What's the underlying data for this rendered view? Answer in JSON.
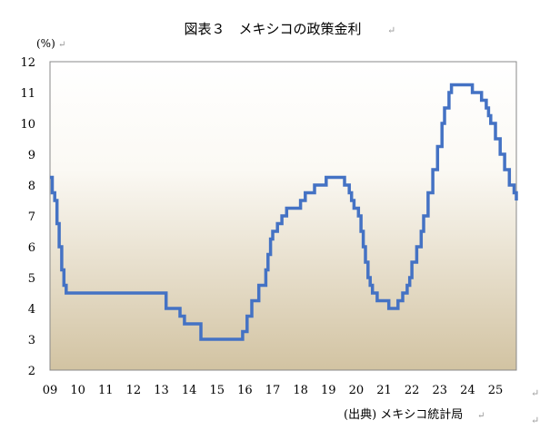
{
  "chart_data": {
    "type": "line",
    "title": "図表３　メキシコの政策金利",
    "ylabel": "(%)",
    "source": "(出典) メキシコ統計局",
    "ylim": [
      2,
      12
    ],
    "yticks": [
      "2",
      "3",
      "4",
      "5",
      "6",
      "7",
      "8",
      "9",
      "10",
      "11",
      "12"
    ],
    "xlim": [
      2009,
      2025.75
    ],
    "xticks": [
      "09",
      "10",
      "11",
      "12",
      "13",
      "14",
      "15",
      "16",
      "17",
      "18",
      "19",
      "20",
      "21",
      "22",
      "23",
      "24",
      "25"
    ],
    "series_color": "#4472C4",
    "plot_background_top": "#FFFFFF",
    "plot_background_bottom": "#D2C3A2",
    "grid": false,
    "series": [
      {
        "step": true,
        "x": [
          2009.0,
          2009.08,
          2009.17,
          2009.25,
          2009.33,
          2009.42,
          2009.5,
          2009.58,
          2013.17,
          2013.67,
          2013.83,
          2014.42,
          2015.92,
          2016.08,
          2016.25,
          2016.5,
          2016.75,
          2016.83,
          2016.92,
          2017.0,
          2017.17,
          2017.33,
          2017.5,
          2018.0,
          2018.17,
          2018.5,
          2018.92,
          2019.0,
          2019.58,
          2019.75,
          2019.83,
          2019.92,
          2020.08,
          2020.17,
          2020.25,
          2020.33,
          2020.42,
          2020.5,
          2020.58,
          2020.75,
          2021.17,
          2021.5,
          2021.67,
          2021.83,
          2021.92,
          2022.0,
          2022.17,
          2022.33,
          2022.42,
          2022.58,
          2022.75,
          2022.92,
          2023.08,
          2023.17,
          2023.33,
          2023.42,
          2024.17,
          2024.5,
          2024.67,
          2024.75,
          2024.83,
          2025.0,
          2025.17,
          2025.33,
          2025.5,
          2025.67,
          2025.75
        ],
        "y": [
          8.25,
          7.75,
          7.5,
          6.75,
          6.0,
          5.25,
          4.75,
          4.5,
          4.0,
          3.75,
          3.5,
          3.0,
          3.25,
          3.75,
          4.25,
          4.75,
          5.25,
          5.75,
          6.25,
          6.5,
          6.75,
          7.0,
          7.25,
          7.5,
          7.75,
          8.0,
          8.25,
          8.25,
          8.0,
          7.75,
          7.5,
          7.25,
          7.0,
          6.5,
          6.0,
          5.5,
          5.0,
          4.75,
          4.5,
          4.25,
          4.0,
          4.25,
          4.5,
          4.75,
          5.0,
          5.5,
          6.0,
          6.5,
          7.0,
          7.75,
          8.5,
          9.25,
          10.0,
          10.5,
          11.0,
          11.25,
          11.0,
          10.75,
          10.5,
          10.25,
          10.0,
          9.5,
          9.0,
          8.5,
          8.0,
          7.75,
          7.5
        ]
      }
    ]
  }
}
